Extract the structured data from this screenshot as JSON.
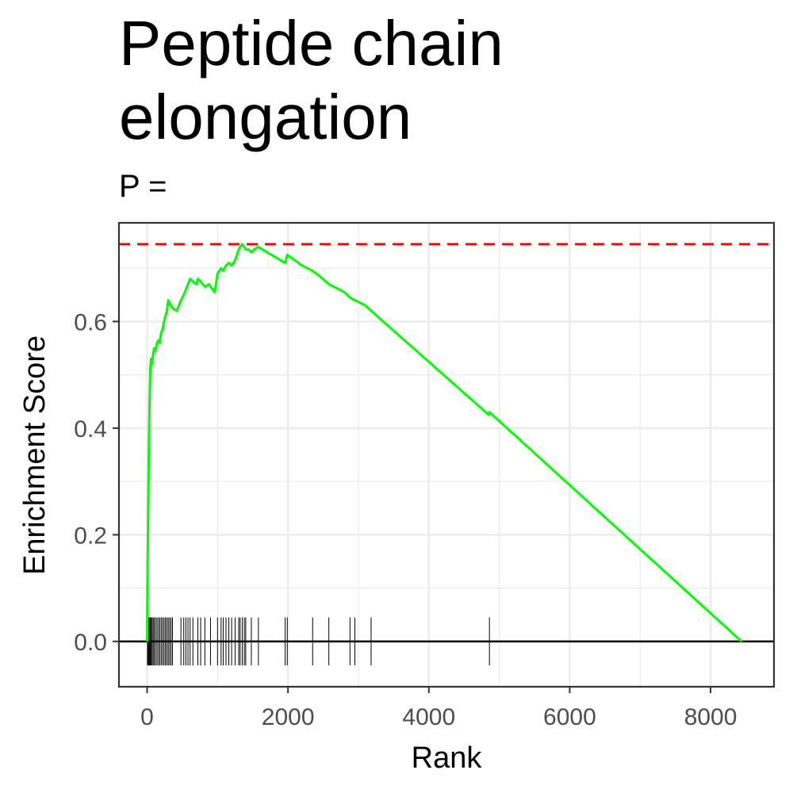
{
  "chart_data": {
    "type": "line",
    "title_lines": [
      "Peptide chain",
      "elongation"
    ],
    "subtitle": "P =",
    "xlabel": "Rank",
    "ylabel": "Enrichment Score",
    "xlim": [
      -400,
      8900
    ],
    "ylim": [
      -0.085,
      0.785
    ],
    "x_ticks": [
      0,
      2000,
      4000,
      6000,
      8000
    ],
    "y_ticks": [
      0.0,
      0.2,
      0.4,
      0.6
    ],
    "grid": true,
    "max_es_line": 0.745,
    "colors": {
      "curve": "#00ff00",
      "max_line": "#ff0000",
      "zero_line": "#000000",
      "hits": "#000000",
      "grid": "#ebebeb",
      "frame": "#333333"
    },
    "hit_band": [
      -0.045,
      0.045
    ],
    "hits": [
      5,
      15,
      25,
      35,
      45,
      55,
      70,
      85,
      100,
      120,
      140,
      160,
      180,
      200,
      220,
      240,
      260,
      280,
      300,
      320,
      340,
      360,
      480,
      520,
      550,
      580,
      610,
      650,
      720,
      760,
      820,
      900,
      1000,
      1050,
      1080,
      1120,
      1160,
      1200,
      1250,
      1300,
      1320,
      1350,
      1380,
      1400,
      1480,
      1580,
      1960,
      1990,
      2350,
      2580,
      2880,
      2950,
      3180,
      4860
    ],
    "series": [
      {
        "x": [
          0,
          5,
          15,
          25,
          35,
          45,
          55,
          70,
          85,
          100,
          120,
          140,
          160,
          180,
          200,
          220,
          240,
          260,
          280,
          300,
          320,
          340,
          360,
          420,
          480,
          520,
          550,
          580,
          610,
          650,
          700,
          720,
          760,
          820,
          880,
          900,
          960,
          1000,
          1050,
          1080,
          1120,
          1160,
          1200,
          1250,
          1300,
          1320,
          1350,
          1380,
          1400,
          1440,
          1480,
          1520,
          1580,
          1700,
          1960,
          1990,
          2200,
          2350,
          2450,
          2580,
          2800,
          2880,
          2950,
          3100,
          3180,
          4850,
          4860,
          8440
        ],
        "y": [
          0.0,
          0.12,
          0.25,
          0.36,
          0.45,
          0.51,
          0.53,
          0.52,
          0.54,
          0.55,
          0.545,
          0.56,
          0.565,
          0.56,
          0.58,
          0.585,
          0.6,
          0.61,
          0.62,
          0.64,
          0.635,
          0.63,
          0.625,
          0.62,
          0.64,
          0.65,
          0.66,
          0.67,
          0.68,
          0.675,
          0.67,
          0.68,
          0.675,
          0.665,
          0.67,
          0.665,
          0.655,
          0.69,
          0.7,
          0.695,
          0.705,
          0.71,
          0.705,
          0.715,
          0.735,
          0.74,
          0.745,
          0.74,
          0.735,
          0.735,
          0.73,
          0.735,
          0.74,
          0.73,
          0.71,
          0.725,
          0.705,
          0.695,
          0.685,
          0.67,
          0.655,
          0.645,
          0.64,
          0.63,
          0.62,
          0.425,
          0.43,
          0.0
        ]
      }
    ]
  }
}
